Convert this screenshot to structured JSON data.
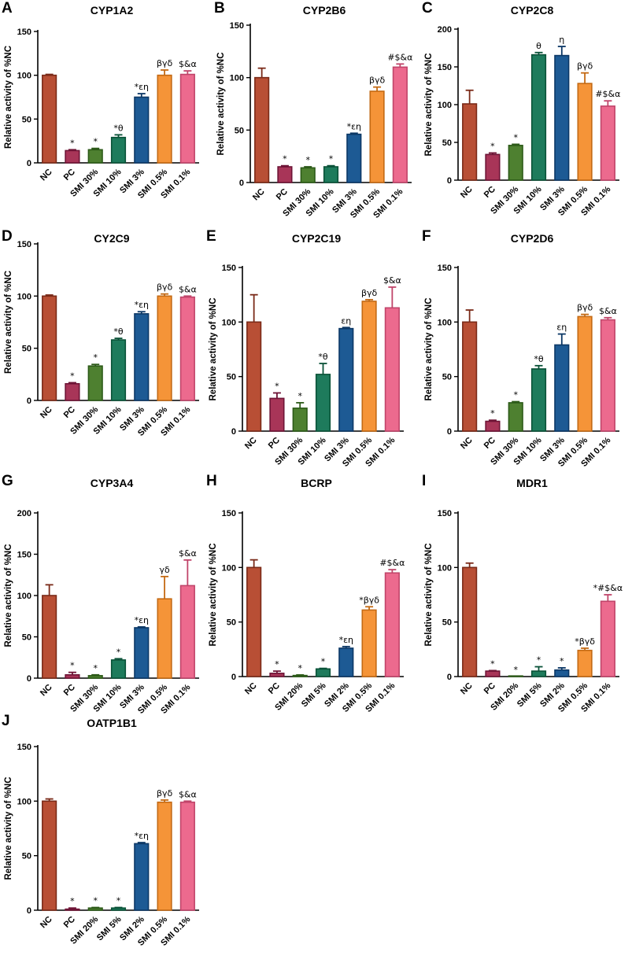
{
  "figure_title": "",
  "colors": [
    "#b84f35",
    "#a83558",
    "#4e8030",
    "#1e7b5c",
    "#1d5a94",
    "#f59438",
    "#ec6a8e"
  ],
  "edge_colors": [
    "#7a2a18",
    "#6e1436",
    "#2c5a18",
    "#0a5238",
    "#0c3866",
    "#c46a14",
    "#c0456a"
  ],
  "chart_data": [
    {
      "letter": "A",
      "title": "CYP1A2",
      "type": "bar",
      "ylabel": "Relative activity of %NC",
      "ylim": [
        0,
        150
      ],
      "yticks": [
        0,
        50,
        100,
        150
      ],
      "categories": [
        "NC",
        "PC",
        "SMI 30%",
        "SMI 10%",
        "SMI 3%",
        "SMI 0.5%",
        "SMI 0.1%"
      ],
      "values": [
        100,
        14,
        15,
        29,
        75,
        100,
        101
      ],
      "errors": [
        1,
        1,
        1.5,
        3,
        4,
        6,
        4
      ],
      "annotations": [
        "",
        "*",
        "*",
        "*θ",
        "*εη",
        "βγδ",
        "$&α"
      ]
    },
    {
      "letter": "B",
      "title": "CYP2B6",
      "type": "bar",
      "ylabel": "Relative activity of %NC",
      "ylim": [
        0,
        150
      ],
      "yticks": [
        0,
        50,
        100,
        150
      ],
      "categories": [
        "NC",
        "PC",
        "SMI 30%",
        "SMI 10%",
        "SMI 3%",
        "SMI 0.5%",
        "SMI 0.1%"
      ],
      "values": [
        100,
        15,
        14,
        15,
        46,
        87,
        110
      ],
      "errors": [
        9,
        1,
        1,
        1,
        1,
        4,
        3
      ],
      "annotations": [
        "",
        "*",
        "*",
        "*",
        "*εη",
        "βγδ",
        "#$&α"
      ]
    },
    {
      "letter": "C",
      "title": "CYP2C8",
      "type": "bar",
      "ylabel": "Relative activity of %NC",
      "ylim": [
        0,
        200
      ],
      "yticks": [
        0,
        50,
        100,
        150,
        200
      ],
      "categories": [
        "NC",
        "PC",
        "SMI 30%",
        "SMI 10%",
        "SMI 3%",
        "SMI 0.5%",
        "SMI 0.1%"
      ],
      "values": [
        101,
        34,
        46,
        166,
        165,
        128,
        98
      ],
      "errors": [
        18,
        2,
        1.5,
        3,
        12,
        14,
        7
      ],
      "annotations": [
        "",
        "*",
        "*",
        "θ",
        "η",
        "βγδ",
        "#$&α"
      ]
    },
    {
      "letter": "D",
      "title": "CY2C9",
      "type": "bar",
      "ylabel": "Relative activity of %NC",
      "ylim": [
        0,
        150
      ],
      "yticks": [
        0,
        50,
        100,
        150
      ],
      "categories": [
        "NC",
        "PC",
        "SMI 30%",
        "SMI 10%",
        "SMI 3%",
        "SMI 0.5%",
        "SMI 0.1%"
      ],
      "values": [
        100,
        16,
        33,
        58,
        83,
        100,
        99
      ],
      "errors": [
        1,
        1,
        1.5,
        1.5,
        2,
        2,
        1
      ],
      "annotations": [
        "",
        "*",
        "*",
        "*θ",
        "*εη",
        "βγδ",
        "$&α"
      ]
    },
    {
      "letter": "E",
      "title": "CYP2C19",
      "type": "bar",
      "ylabel": "Relative activity of %NC",
      "ylim": [
        0,
        150
      ],
      "yticks": [
        0,
        50,
        100,
        150
      ],
      "categories": [
        "NC",
        "PC",
        "SMI 30%",
        "SMI 10%",
        "SMI 3%",
        "SMI 0.5%",
        "SMI 0.1%"
      ],
      "values": [
        100,
        30,
        21,
        52,
        94,
        119,
        113
      ],
      "errors": [
        25,
        5,
        5,
        10,
        1,
        1.5,
        19
      ],
      "annotations": [
        "",
        "*",
        "*",
        "*θ",
        "εη",
        "βγδ",
        "$&α"
      ]
    },
    {
      "letter": "F",
      "title": "CYP2D6",
      "type": "bar",
      "ylabel": "Relative activity of %NC",
      "ylim": [
        0,
        150
      ],
      "yticks": [
        0,
        50,
        100,
        150
      ],
      "categories": [
        "NC",
        "PC",
        "SMI 30%",
        "SMI 10%",
        "SMI 3%",
        "SMI 0.5%",
        "SMI 0.1%"
      ],
      "values": [
        100,
        9,
        26,
        57,
        79,
        105,
        102
      ],
      "errors": [
        11,
        1,
        1,
        3,
        10,
        2,
        2
      ],
      "annotations": [
        "",
        "*",
        "*",
        "*θ",
        "εη",
        "βγδ",
        "$&α"
      ]
    },
    {
      "letter": "G",
      "title": "CYP3A4",
      "type": "bar",
      "ylabel": "Relative activity of %NC",
      "ylim": [
        0,
        200
      ],
      "yticks": [
        0,
        50,
        100,
        150,
        200
      ],
      "categories": [
        "NC",
        "PC",
        "SMI 30%",
        "SMI 10%",
        "SMI 3%",
        "SMI 0.5%",
        "SMI 0.1%"
      ],
      "values": [
        100,
        4,
        3,
        22,
        61,
        96,
        112
      ],
      "errors": [
        13,
        3,
        1,
        1.5,
        1,
        27,
        31
      ],
      "annotations": [
        "",
        "*",
        "*",
        "*",
        "*εη",
        "γδ",
        "$&α"
      ]
    },
    {
      "letter": "H",
      "title": "BCRP",
      "type": "bar",
      "ylabel": "Relative activity of %NC",
      "ylim": [
        0,
        150
      ],
      "yticks": [
        0,
        50,
        100,
        150
      ],
      "categories": [
        "NC",
        "PC",
        "SMI 20%",
        "SMI 5%",
        "SMI 2%",
        "SMI 0.5%",
        "SMI 0.1%"
      ],
      "values": [
        100,
        3,
        1,
        7,
        26,
        61,
        95
      ],
      "errors": [
        7,
        2,
        0.5,
        0.5,
        1.5,
        3,
        3
      ],
      "annotations": [
        "",
        "*",
        "*",
        "*",
        "*εη",
        "*βγδ",
        "#$&α"
      ]
    },
    {
      "letter": "I",
      "title": "MDR1",
      "type": "bar",
      "ylabel": "Relative activity of %NC",
      "ylim": [
        0,
        150
      ],
      "yticks": [
        0,
        50,
        100,
        150
      ],
      "categories": [
        "NC",
        "PC",
        "SMI 20%",
        "SMI 5%",
        "SMI 2%",
        "SMI 0.5%",
        "SMI 0.1%"
      ],
      "values": [
        100,
        5,
        0,
        5,
        6,
        24,
        69
      ],
      "errors": [
        4,
        0.5,
        0,
        4,
        2,
        2,
        6
      ],
      "annotations": [
        "",
        "*",
        "*",
        "*",
        "*",
        "*βγδ",
        "*#$&α"
      ]
    },
    {
      "letter": "J",
      "title": "OATP1B1",
      "type": "bar",
      "ylabel": "Relative activity of %NC",
      "ylim": [
        0,
        150
      ],
      "yticks": [
        0,
        50,
        100,
        150
      ],
      "categories": [
        "NC",
        "PC",
        "SMI 20%",
        "SMI 5%",
        "SMI 2%",
        "SMI 0.5%",
        "SMI 0.1%"
      ],
      "values": [
        100,
        1,
        2,
        2,
        61,
        99,
        99
      ],
      "errors": [
        2,
        1,
        0.5,
        0.5,
        1,
        2,
        1
      ],
      "annotations": [
        "",
        "*",
        "*",
        "*",
        "*εη",
        "βγδ",
        "$&α"
      ]
    }
  ]
}
